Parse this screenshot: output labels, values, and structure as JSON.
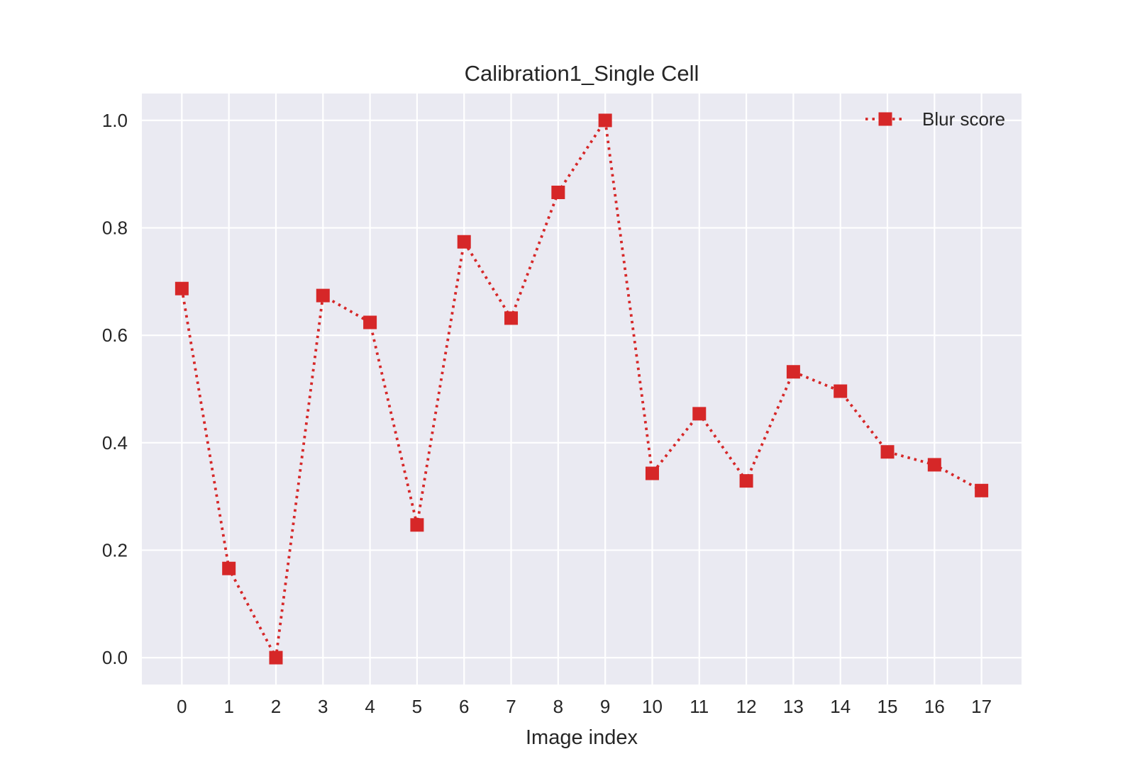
{
  "chart_data": {
    "type": "line",
    "title": "Calibration1_Single Cell",
    "xlabel": "Image index",
    "ylabel": "",
    "x": [
      0,
      1,
      2,
      3,
      4,
      5,
      6,
      7,
      8,
      9,
      10,
      11,
      12,
      13,
      14,
      15,
      16,
      17
    ],
    "xticks": [
      "0",
      "1",
      "2",
      "3",
      "4",
      "5",
      "6",
      "7",
      "8",
      "9",
      "10",
      "11",
      "12",
      "13",
      "14",
      "15",
      "16",
      "17"
    ],
    "yticks": [
      "0.0",
      "0.2",
      "0.4",
      "0.6",
      "0.8",
      "1.0"
    ],
    "ylim": [
      -0.05,
      1.05
    ],
    "xlim": [
      -0.85,
      17.85
    ],
    "grid": true,
    "legend_position": "top-right",
    "series": [
      {
        "name": "Blur score",
        "color": "#d62728",
        "line_style": "dotted",
        "marker": "square",
        "values": [
          0.687,
          0.166,
          0.0,
          0.674,
          0.624,
          0.247,
          0.774,
          0.632,
          0.866,
          1.0,
          0.343,
          0.454,
          0.329,
          0.532,
          0.496,
          0.383,
          0.359,
          0.311
        ]
      }
    ],
    "colors": {
      "plot_background": "#eaeaf2",
      "grid": "#ffffff",
      "text": "#262626"
    }
  }
}
